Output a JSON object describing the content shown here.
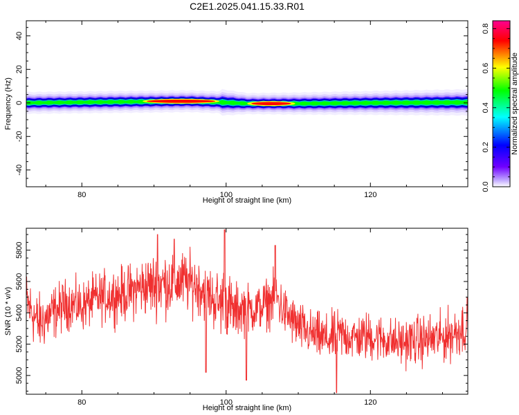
{
  "title": "C2E1.2025.041.15.33.R01",
  "chart_data": [
    {
      "type": "heatmap",
      "xlabel": "Height of straight line (km)",
      "ylabel": "Frequency (Hz)",
      "xlim": [
        72.3,
        133.5
      ],
      "ylim": [
        -50,
        49
      ],
      "xticks": [
        80,
        100,
        120
      ],
      "yticks": [
        -40,
        -20,
        0,
        20,
        40
      ],
      "band_center_hz": [
        [
          72.3,
          0
        ],
        [
          85,
          0.6
        ],
        [
          95,
          1.0
        ],
        [
          99,
          0.4
        ],
        [
          103,
          -0.4
        ],
        [
          110,
          -0.4
        ],
        [
          120,
          0
        ],
        [
          133.5,
          0.3
        ]
      ],
      "band_halfwidth_hz": [
        [
          72.3,
          2.5
        ],
        [
          99,
          2.5
        ],
        [
          99.5,
          3.0
        ],
        [
          103,
          2.4
        ],
        [
          133.5,
          3.0
        ]
      ],
      "hot_spots": [
        {
          "x_range": [
            89,
            98.5
          ],
          "freq": 1.0,
          "amplitude": 0.84
        },
        {
          "x_range": [
            103.5,
            109
          ],
          "freq": -0.4,
          "amplitude": 0.84
        }
      ],
      "colorbar": {
        "label": "Normalized spectral amplitude",
        "range": [
          0,
          0.84
        ],
        "ticks": [
          "0.0",
          "0.2",
          "0.4",
          "0.6",
          "0.8"
        ],
        "colors": [
          "#ffffff",
          "#c0a8ff",
          "#7000ff",
          "#0000ff",
          "#00ffff",
          "#00ff00",
          "#ffff00",
          "#ff0000",
          "#ff0090"
        ]
      }
    },
    {
      "type": "line",
      "xlabel": "Height of straight line (km)",
      "ylabel": "SNR (10 * v/v)",
      "xlim": [
        72.3,
        133.5
      ],
      "ylim": [
        4880,
        5940
      ],
      "xticks": [
        80,
        100,
        120
      ],
      "yticks": [
        5000,
        5200,
        5400,
        5600,
        5800
      ],
      "color": "#f03030",
      "series": [
        {
          "x": [
            72.3,
            74,
            76,
            78,
            80,
            82,
            84,
            86,
            88,
            90,
            92,
            94,
            96,
            98,
            99,
            100,
            101,
            102,
            104,
            106,
            107,
            108,
            110,
            112,
            114,
            116,
            118,
            120,
            122,
            124,
            126,
            128,
            130,
            132,
            133.5
          ],
          "y": [
            5470,
            5330,
            5400,
            5460,
            5440,
            5490,
            5510,
            5520,
            5560,
            5580,
            5590,
            5600,
            5580,
            5500,
            5460,
            5480,
            5400,
            5430,
            5420,
            5470,
            5500,
            5410,
            5310,
            5260,
            5230,
            5260,
            5240,
            5250,
            5230,
            5210,
            5220,
            5230,
            5240,
            5280,
            5330
          ],
          "spread": [
            150,
            140,
            130,
            120,
            120,
            120,
            130,
            130,
            140,
            150,
            160,
            150,
            140,
            140,
            160,
            180,
            130,
            130,
            110,
            120,
            130,
            120,
            120,
            110,
            120,
            120,
            110,
            120,
            110,
            110,
            120,
            120,
            120,
            130,
            130
          ]
        }
      ]
    }
  ]
}
